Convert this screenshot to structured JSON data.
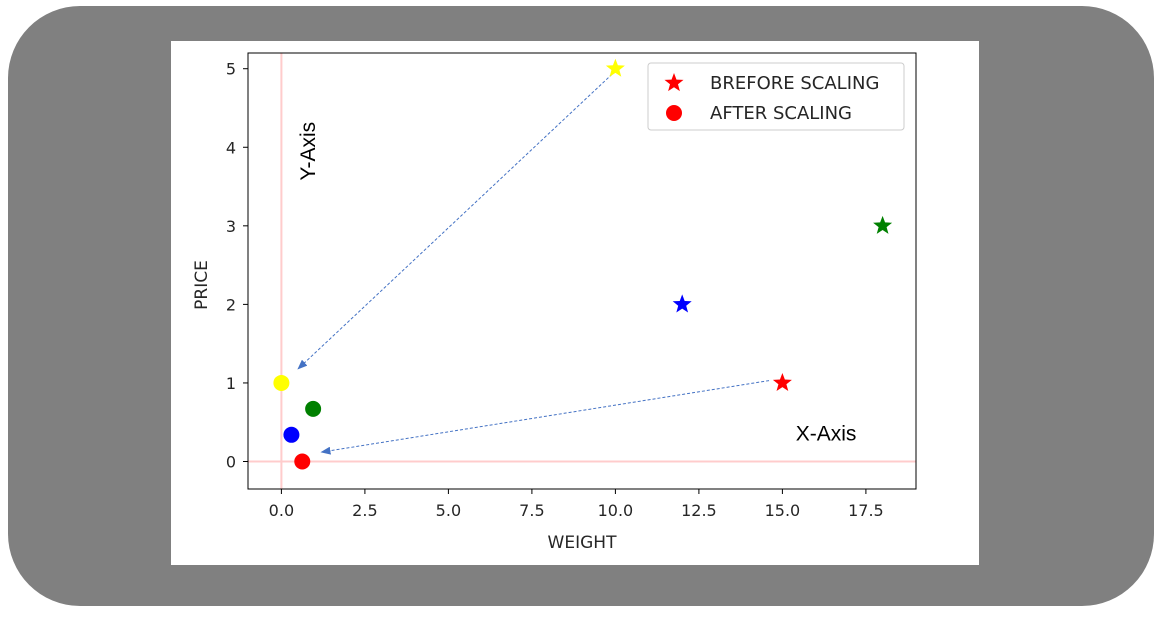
{
  "chart_data": {
    "type": "scatter",
    "xlabel": "WEIGHT",
    "ylabel": "PRICE",
    "xlim": [
      -1.0,
      19.0
    ],
    "ylim": [
      -0.35,
      5.2
    ],
    "xticks": [
      0.0,
      2.5,
      5.0,
      7.5,
      10.0,
      12.5,
      15.0,
      17.5
    ],
    "xtick_labels": [
      "0.0",
      "2.5",
      "5.0",
      "7.5",
      "10.0",
      "12.5",
      "15.0",
      "17.5"
    ],
    "yticks": [
      0,
      1,
      2,
      3,
      4,
      5
    ],
    "ytick_labels": [
      "0",
      "1",
      "2",
      "3",
      "4",
      "5"
    ],
    "grid": false,
    "legend_position": "top-right",
    "series": [
      {
        "name": "BREFORE SCALING",
        "marker": "star",
        "legend_color": "#ff0000",
        "points": [
          {
            "x": 15,
            "y": 1,
            "color": "#ff0000"
          },
          {
            "x": 12,
            "y": 2,
            "color": "#0000ff"
          },
          {
            "x": 18,
            "y": 3,
            "color": "#008000"
          },
          {
            "x": 10,
            "y": 5,
            "color": "#ffff00"
          }
        ]
      },
      {
        "name": "AFTER SCALING",
        "marker": "circle",
        "legend_color": "#ff0000",
        "points": [
          {
            "x": 0.625,
            "y": 0.0,
            "color": "#ff0000"
          },
          {
            "x": 0.3,
            "y": 0.34,
            "color": "#0000ff"
          },
          {
            "x": 0.95,
            "y": 0.67,
            "color": "#008000"
          },
          {
            "x": 0.0,
            "y": 1.0,
            "color": "#ffff00"
          }
        ]
      }
    ],
    "reference_lines": {
      "x": 0,
      "y": 0,
      "color": "#ffcccc"
    },
    "annotations": [
      {
        "text": "Y-Axis",
        "x": 1.0,
        "y": 3.95
      },
      {
        "text": "X-Axis",
        "x": 15.4,
        "y": 0.27
      }
    ],
    "arrows": [
      {
        "from": [
          9.9,
          4.93
        ],
        "to": [
          0.5,
          1.18
        ],
        "color": "#4472c4"
      },
      {
        "from": [
          14.6,
          1.03
        ],
        "to": [
          1.2,
          0.12
        ],
        "color": "#4472c4"
      }
    ]
  }
}
